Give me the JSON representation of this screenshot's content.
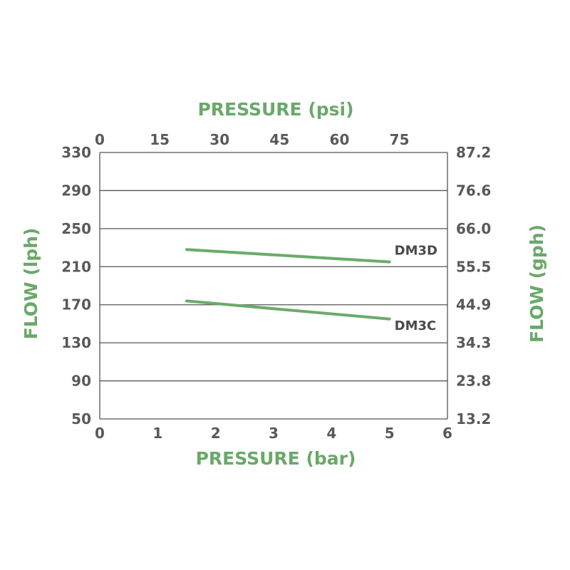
{
  "chart_data": {
    "type": "line",
    "xlabel": "PRESSURE (bar)",
    "x2label": "PRESSURE (psi)",
    "ylabel": "FLOW (lph)",
    "y2label": "FLOW (gph)",
    "xlim": [
      0,
      6
    ],
    "ylim": [
      50,
      330
    ],
    "x_ticks": [
      "0",
      "1",
      "2",
      "3",
      "4",
      "5",
      "6"
    ],
    "x_tick_values": [
      0,
      1,
      2,
      3,
      4,
      5,
      6
    ],
    "x2_ticks": [
      "0",
      "15",
      "30",
      "45",
      "60",
      "75"
    ],
    "x2_tick_values": [
      0,
      15,
      30,
      45,
      60,
      75
    ],
    "x2_unit_per_bar": 14.5038,
    "y_ticks": [
      "50",
      "90",
      "130",
      "170",
      "210",
      "250",
      "290",
      "330"
    ],
    "y_tick_values": [
      50,
      90,
      130,
      170,
      210,
      250,
      290,
      330
    ],
    "y2_ticks": [
      "13.2",
      "23.8",
      "34.3",
      "44.9",
      "55.5",
      "66.0",
      "76.6",
      "87.2"
    ],
    "grid": "horizontal",
    "series": [
      {
        "name": "DM3D",
        "x": [
          1.5,
          5
        ],
        "y": [
          228,
          215
        ]
      },
      {
        "name": "DM3C",
        "x": [
          1.5,
          5
        ],
        "y": [
          174,
          155
        ]
      }
    ],
    "colors": {
      "title": "#6aa86a",
      "line": "#6aab6a",
      "tick": "#595959",
      "series_label": "#4a4a4a",
      "grid": "#555555"
    }
  }
}
